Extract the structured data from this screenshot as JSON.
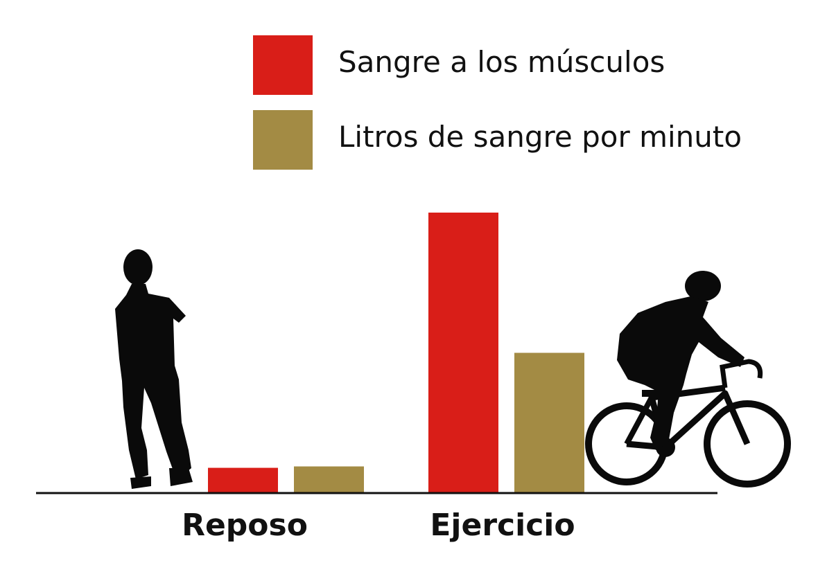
{
  "chart_data": {
    "type": "bar",
    "categories": [
      "Reposo",
      "Ejercicio"
    ],
    "series": [
      {
        "name": "Sangre a los músculos",
        "color": "#d91e18",
        "values": [
          0.9,
          10.0
        ]
      },
      {
        "name": "Litros de sangre por minuto",
        "color": "#a38b44",
        "values": [
          0.95,
          5.0
        ]
      }
    ],
    "ylim": [
      0,
      10
    ],
    "grid": false,
    "legend_position": "top",
    "title": "",
    "xlabel": "",
    "ylabel": ""
  },
  "icons": {
    "left": "standing-person-icon",
    "right": "cyclist-icon"
  }
}
